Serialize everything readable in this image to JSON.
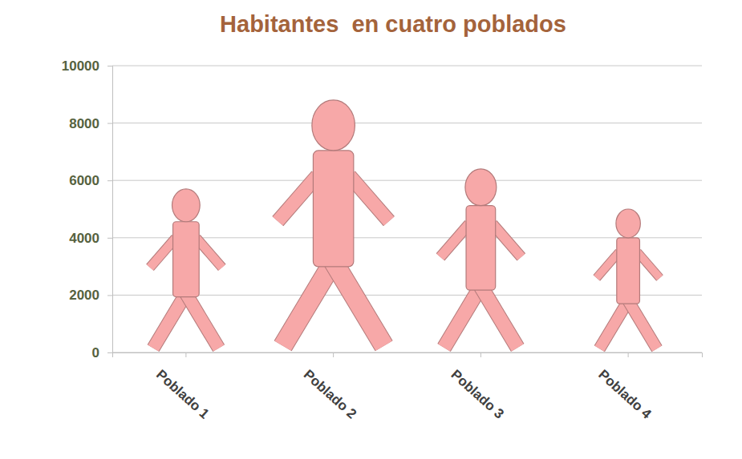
{
  "chart_data": {
    "type": "pictograph",
    "title": "Habitantes  en cuatro poblados",
    "categories": [
      "Poblado 1",
      "Poblado 2",
      "Poblado 3",
      "Poblado 4"
    ],
    "values": [
      5700,
      8800,
      6400,
      5000
    ],
    "color": "#f7a8a8",
    "marker": "person",
    "ylim": [
      0,
      10000
    ],
    "yticks": [
      0,
      2000,
      4000,
      6000,
      8000,
      10000
    ],
    "grid": true
  }
}
